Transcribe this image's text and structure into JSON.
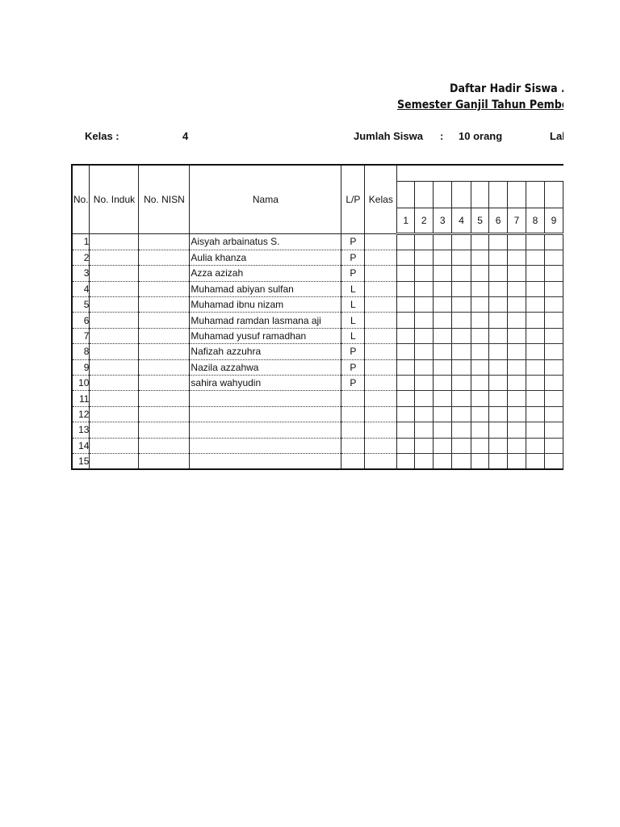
{
  "title": "Daftar Hadir Siswa .",
  "subtitle": "Semester Ganjil Tahun Pembe",
  "info": {
    "kelas_label": "Kelas  :",
    "kelas_value": "4",
    "jumlah_label": "Jumlah Siswa",
    "colon": ":",
    "jumlah_value": "10 orang",
    "cut_label": "Lal"
  },
  "headers": {
    "no": "No.",
    "induk": "No. Induk",
    "nisn": "No. NISN",
    "nama": "Nama",
    "lp": "L/P",
    "kelas": "Kelas",
    "days": [
      "1",
      "2",
      "3",
      "4",
      "5",
      "6",
      "7",
      "8",
      "9"
    ]
  },
  "rows": [
    {
      "no": "1",
      "nama": "Aisyah arbainatus S.",
      "lp": "P"
    },
    {
      "no": "2",
      "nama": "Aulia khanza",
      "lp": "P"
    },
    {
      "no": "3",
      "nama": "Azza azizah",
      "lp": "P"
    },
    {
      "no": "4",
      "nama": "Muhamad abiyan sulfan",
      "lp": "L"
    },
    {
      "no": "5",
      "nama": "Muhamad ibnu nizam",
      "lp": "L"
    },
    {
      "no": "6",
      "nama": "Muhamad ramdan lasmana aji",
      "lp": "L"
    },
    {
      "no": "7",
      "nama": "Muhamad yusuf ramadhan",
      "lp": "L"
    },
    {
      "no": "8",
      "nama": "Nafizah azzuhra",
      "lp": "P"
    },
    {
      "no": "9",
      "nama": "Nazila azzahwa",
      "lp": "P"
    },
    {
      "no": "10",
      "nama": "sahira wahyudin",
      "lp": "P"
    },
    {
      "no": "11",
      "nama": "",
      "lp": ""
    },
    {
      "no": "12",
      "nama": "",
      "lp": ""
    },
    {
      "no": "13",
      "nama": "",
      "lp": ""
    },
    {
      "no": "14",
      "nama": "",
      "lp": ""
    },
    {
      "no": "15",
      "nama": "",
      "lp": ""
    }
  ]
}
